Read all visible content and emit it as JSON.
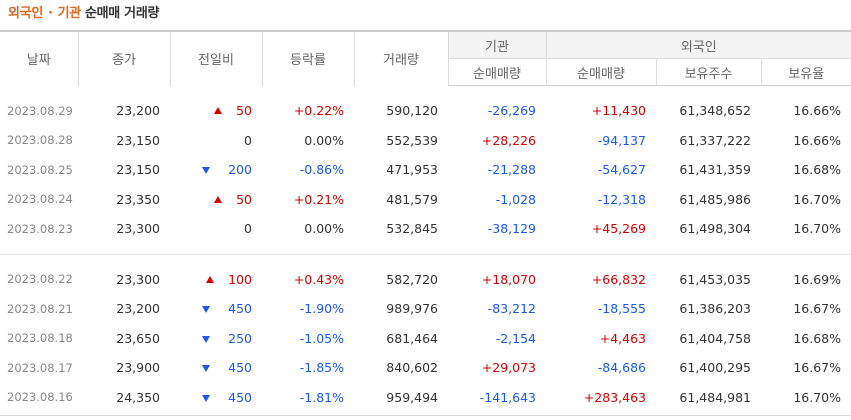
{
  "title": {
    "part1": "외국인",
    "sep": "·",
    "part2": "기관",
    "part3": "순매매 거래량"
  },
  "headers": {
    "date": "날짜",
    "close": "종가",
    "change": "전일비",
    "rate": "등락률",
    "volume": "거래량",
    "inst_group": "기관",
    "inst_net": "순매매량",
    "foreign_group": "외국인",
    "foreign_net": "순매매량",
    "foreign_hold": "보유주수",
    "foreign_ratio": "보유율"
  },
  "group1": [
    {
      "date": "2023.08.29",
      "close": "23,200",
      "dir": "up",
      "change": "50",
      "rate": "+0.22%",
      "volume": "590,120",
      "inst": "-26,269",
      "foreign": "+11,430",
      "hold": "61,348,652",
      "ratio": "16.66%"
    },
    {
      "date": "2023.08.28",
      "close": "23,150",
      "dir": "none",
      "change": "0",
      "rate": "0.00%",
      "volume": "552,539",
      "inst": "+28,226",
      "foreign": "-94,137",
      "hold": "61,337,222",
      "ratio": "16.66%"
    },
    {
      "date": "2023.08.25",
      "close": "23,150",
      "dir": "down",
      "change": "200",
      "rate": "-0.86%",
      "volume": "471,953",
      "inst": "-21,288",
      "foreign": "-54,627",
      "hold": "61,431,359",
      "ratio": "16.68%"
    },
    {
      "date": "2023.08.24",
      "close": "23,350",
      "dir": "up",
      "change": "50",
      "rate": "+0.21%",
      "volume": "481,579",
      "inst": "-1,028",
      "foreign": "-12,318",
      "hold": "61,485,986",
      "ratio": "16.70%"
    },
    {
      "date": "2023.08.23",
      "close": "23,300",
      "dir": "none",
      "change": "0",
      "rate": "0.00%",
      "volume": "532,845",
      "inst": "-38,129",
      "foreign": "+45,269",
      "hold": "61,498,304",
      "ratio": "16.70%"
    }
  ],
  "group2": [
    {
      "date": "2023.08.22",
      "close": "23,300",
      "dir": "up",
      "change": "100",
      "rate": "+0.43%",
      "volume": "582,720",
      "inst": "+18,070",
      "foreign": "+66,832",
      "hold": "61,453,035",
      "ratio": "16.69%"
    },
    {
      "date": "2023.08.21",
      "close": "23,200",
      "dir": "down",
      "change": "450",
      "rate": "-1.90%",
      "volume": "989,976",
      "inst": "-83,212",
      "foreign": "-18,555",
      "hold": "61,386,203",
      "ratio": "16.67%"
    },
    {
      "date": "2023.08.18",
      "close": "23,650",
      "dir": "down",
      "change": "250",
      "rate": "-1.05%",
      "volume": "681,464",
      "inst": "-2,154",
      "foreign": "+4,463",
      "hold": "61,404,758",
      "ratio": "16.68%"
    },
    {
      "date": "2023.08.17",
      "close": "23,900",
      "dir": "down",
      "change": "450",
      "rate": "-1.85%",
      "volume": "840,602",
      "inst": "+29,073",
      "foreign": "-84,686",
      "hold": "61,400,295",
      "ratio": "16.67%"
    },
    {
      "date": "2023.08.16",
      "close": "24,350",
      "dir": "down",
      "change": "450",
      "rate": "-1.81%",
      "volume": "959,494",
      "inst": "-141,643",
      "foreign": "+283,463",
      "hold": "61,484,981",
      "ratio": "16.70%"
    }
  ]
}
